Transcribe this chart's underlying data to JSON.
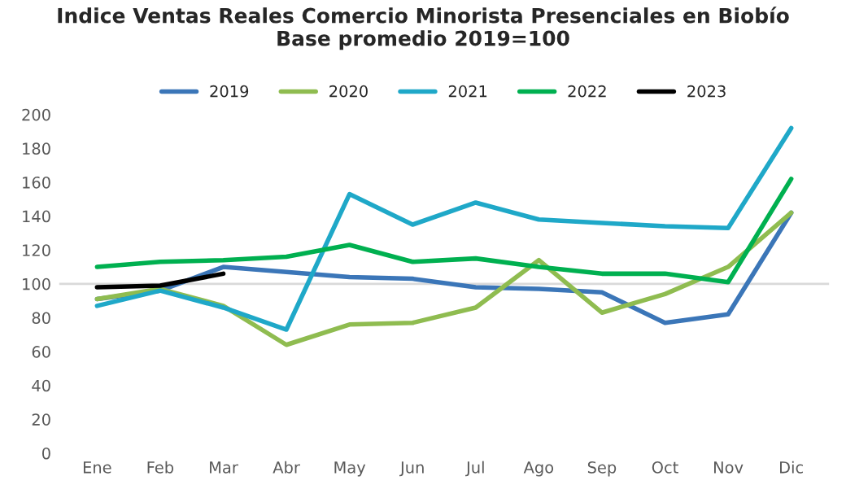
{
  "chart_data": {
    "type": "line",
    "title": "Indice Ventas Reales Comercio Minorista Presenciales en Biobío\nBase promedio 2019=100",
    "categories": [
      "Ene",
      "Feb",
      "Mar",
      "Abr",
      "May",
      "Jun",
      "Jul",
      "Ago",
      "Sep",
      "Oct",
      "Nov",
      "Dic"
    ],
    "series": [
      {
        "name": "2019",
        "color": "#3b76b8",
        "values": [
          91,
          96,
          110,
          107,
          104,
          103,
          98,
          97,
          95,
          77,
          82,
          142
        ]
      },
      {
        "name": "2020",
        "color": "#8fbc50",
        "values": [
          91,
          97,
          87,
          64,
          76,
          77,
          86,
          114,
          83,
          94,
          110,
          142
        ]
      },
      {
        "name": "2021",
        "color": "#1fa8c8",
        "values": [
          87,
          96,
          86,
          73,
          153,
          135,
          148,
          138,
          136,
          134,
          133,
          192
        ]
      },
      {
        "name": "2022",
        "color": "#00b050",
        "values": [
          110,
          113,
          114,
          116,
          123,
          113,
          115,
          110,
          106,
          106,
          101,
          162
        ]
      },
      {
        "name": "2023",
        "color": "#000000",
        "values": [
          98,
          99,
          106,
          null,
          null,
          null,
          null,
          null,
          null,
          null,
          null,
          null
        ]
      }
    ],
    "ylim": [
      0,
      200
    ],
    "yticks": [
      0,
      20,
      40,
      60,
      80,
      100,
      120,
      140,
      160,
      180,
      200
    ],
    "ref_lines": [
      {
        "axis": "y",
        "value": 100,
        "color": "#d9d9d9"
      }
    ],
    "grid": false,
    "legend": "top",
    "marker": "none",
    "line_style": "solid"
  }
}
